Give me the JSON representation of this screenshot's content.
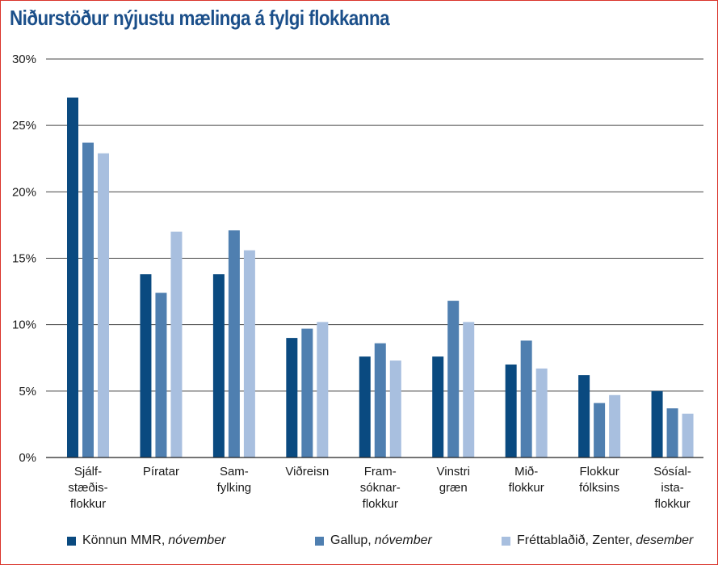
{
  "title": "Niðurstöður nýjustu mælinga á fylgi flokkanna",
  "chart_data": {
    "type": "bar",
    "categories": [
      [
        "Sjálf-",
        "stæðis-",
        "flokkur"
      ],
      [
        "Píratar"
      ],
      [
        "Sam-",
        "fylking"
      ],
      [
        "Viðreisn"
      ],
      [
        "Fram-",
        "sóknar-",
        "flokkur"
      ],
      [
        "Vinstri",
        "græn"
      ],
      [
        "Mið-",
        "flokkur"
      ],
      [
        "Flokkur",
        "fólksins"
      ],
      [
        "Sósíal-",
        "ista-",
        "flokkur"
      ]
    ],
    "series": [
      {
        "name": "Könnun MMR,",
        "name_italic": "nóvember",
        "color": "#0a4a80",
        "values": [
          27.1,
          13.8,
          13.8,
          9.0,
          7.6,
          7.6,
          7.0,
          6.2,
          5.0
        ]
      },
      {
        "name": "Gallup,",
        "name_italic": "nóvember",
        "color": "#4f7fb0",
        "values": [
          23.7,
          12.4,
          17.1,
          9.7,
          8.6,
          11.8,
          8.8,
          4.1,
          3.7
        ]
      },
      {
        "name": "Fréttablaðið, Zenter,",
        "name_italic": "desember",
        "color": "#a8bfdf",
        "values": [
          22.9,
          17.0,
          15.6,
          10.2,
          7.3,
          10.2,
          6.7,
          4.7,
          3.3
        ]
      }
    ],
    "yticks": [
      "0%",
      "5%",
      "10%",
      "15%",
      "20%",
      "25%",
      "30%"
    ],
    "ylim": [
      0,
      30
    ],
    "grid": true,
    "legend_position": "bottom"
  }
}
